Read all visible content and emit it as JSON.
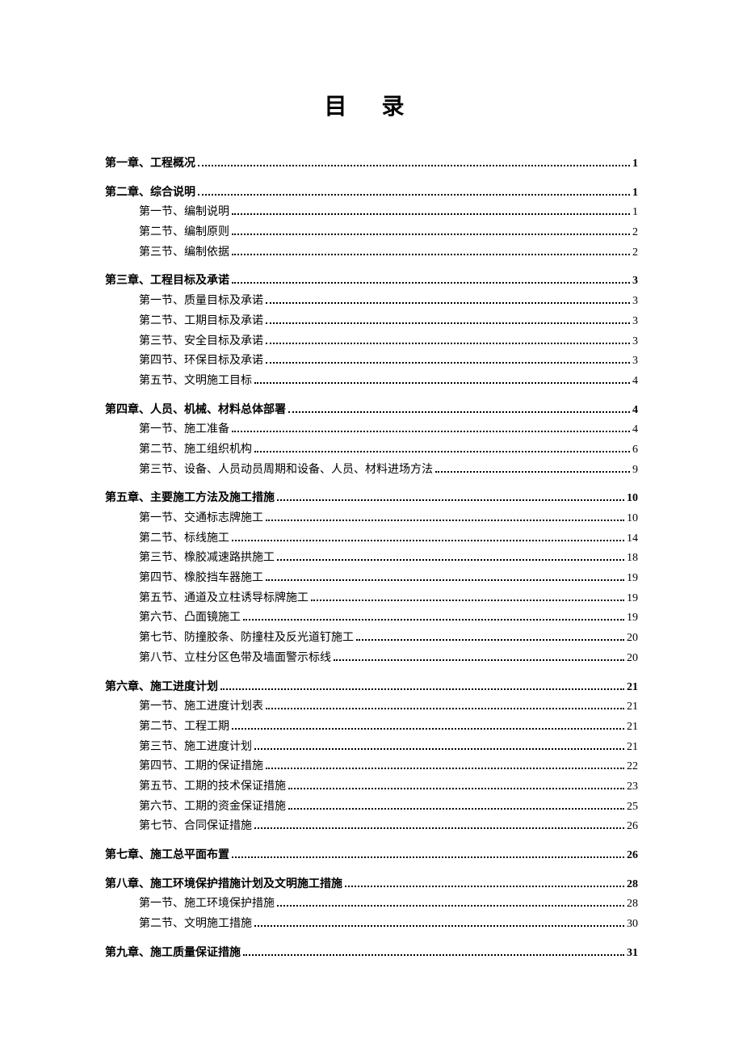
{
  "title": "目 录",
  "chapters": [
    {
      "label": "第一章、工程概况",
      "page": "1",
      "sections": []
    },
    {
      "label": "第二章、综合说明",
      "page": "1",
      "sections": [
        {
          "label": "第一节、编制说明",
          "page": "1"
        },
        {
          "label": "第二节、编制原则",
          "page": "2"
        },
        {
          "label": "第三节、编制依据",
          "page": "2"
        }
      ]
    },
    {
      "label": "第三章、工程目标及承诺",
      "page": "3",
      "sections": [
        {
          "label": "第一节、质量目标及承诺",
          "page": "3"
        },
        {
          "label": "第二节、工期目标及承诺",
          "page": "3"
        },
        {
          "label": "第三节、安全目标及承诺",
          "page": "3"
        },
        {
          "label": "第四节、环保目标及承诺",
          "page": "3"
        },
        {
          "label": "第五节、文明施工目标",
          "page": "4"
        }
      ]
    },
    {
      "label": "第四章、人员、机械、材料总体部署",
      "page": "4",
      "sections": [
        {
          "label": "第一节、施工准备",
          "page": "4"
        },
        {
          "label": "第二节、施工组织机构",
          "page": "6"
        },
        {
          "label": "第三节、设备、人员动员周期和设备、人员、材料进场方法",
          "page": "9"
        }
      ]
    },
    {
      "label": "第五章、主要施工方法及施工措施",
      "page": "10",
      "sections": [
        {
          "label": "第一节、交通标志牌施工",
          "page": "10"
        },
        {
          "label": "第二节、标线施工",
          "page": "14"
        },
        {
          "label": "第三节、橡胶减速路拱施工",
          "page": "18"
        },
        {
          "label": "第四节、橡胶挡车器施工",
          "page": "19"
        },
        {
          "label": "第五节、通道及立柱诱导标牌施工",
          "page": "19"
        },
        {
          "label": "第六节、凸面镜施工",
          "page": "19"
        },
        {
          "label": "第七节、防撞胶条、防撞柱及反光道钉施工",
          "page": "20"
        },
        {
          "label": "第八节、立柱分区色带及墙面警示标线",
          "page": "20"
        }
      ]
    },
    {
      "label": "第六章、施工进度计划",
      "page": "21",
      "sections": [
        {
          "label": "第一节、施工进度计划表",
          "page": "21"
        },
        {
          "label": "第二节、工程工期",
          "page": "21"
        },
        {
          "label": "第三节、施工进度计划",
          "page": "21"
        },
        {
          "label": "第四节、工期的保证措施",
          "page": "22"
        },
        {
          "label": "第五节、工期的技术保证措施",
          "page": "23"
        },
        {
          "label": "第六节、工期的资金保证措施",
          "page": "25"
        },
        {
          "label": "第七节、合同保证措施",
          "page": "26"
        }
      ]
    },
    {
      "label": "第七章、施工总平面布置",
      "page": "26",
      "sections": []
    },
    {
      "label": "第八章、施工环境保护措施计划及文明施工措施",
      "page": "28",
      "sections": [
        {
          "label": "第一节、施工环境保护措施",
          "page": "28"
        },
        {
          "label": "第二节、文明施工措施",
          "page": "30"
        }
      ]
    },
    {
      "label": "第九章、施工质量保证措施",
      "page": "31",
      "sections": []
    }
  ]
}
